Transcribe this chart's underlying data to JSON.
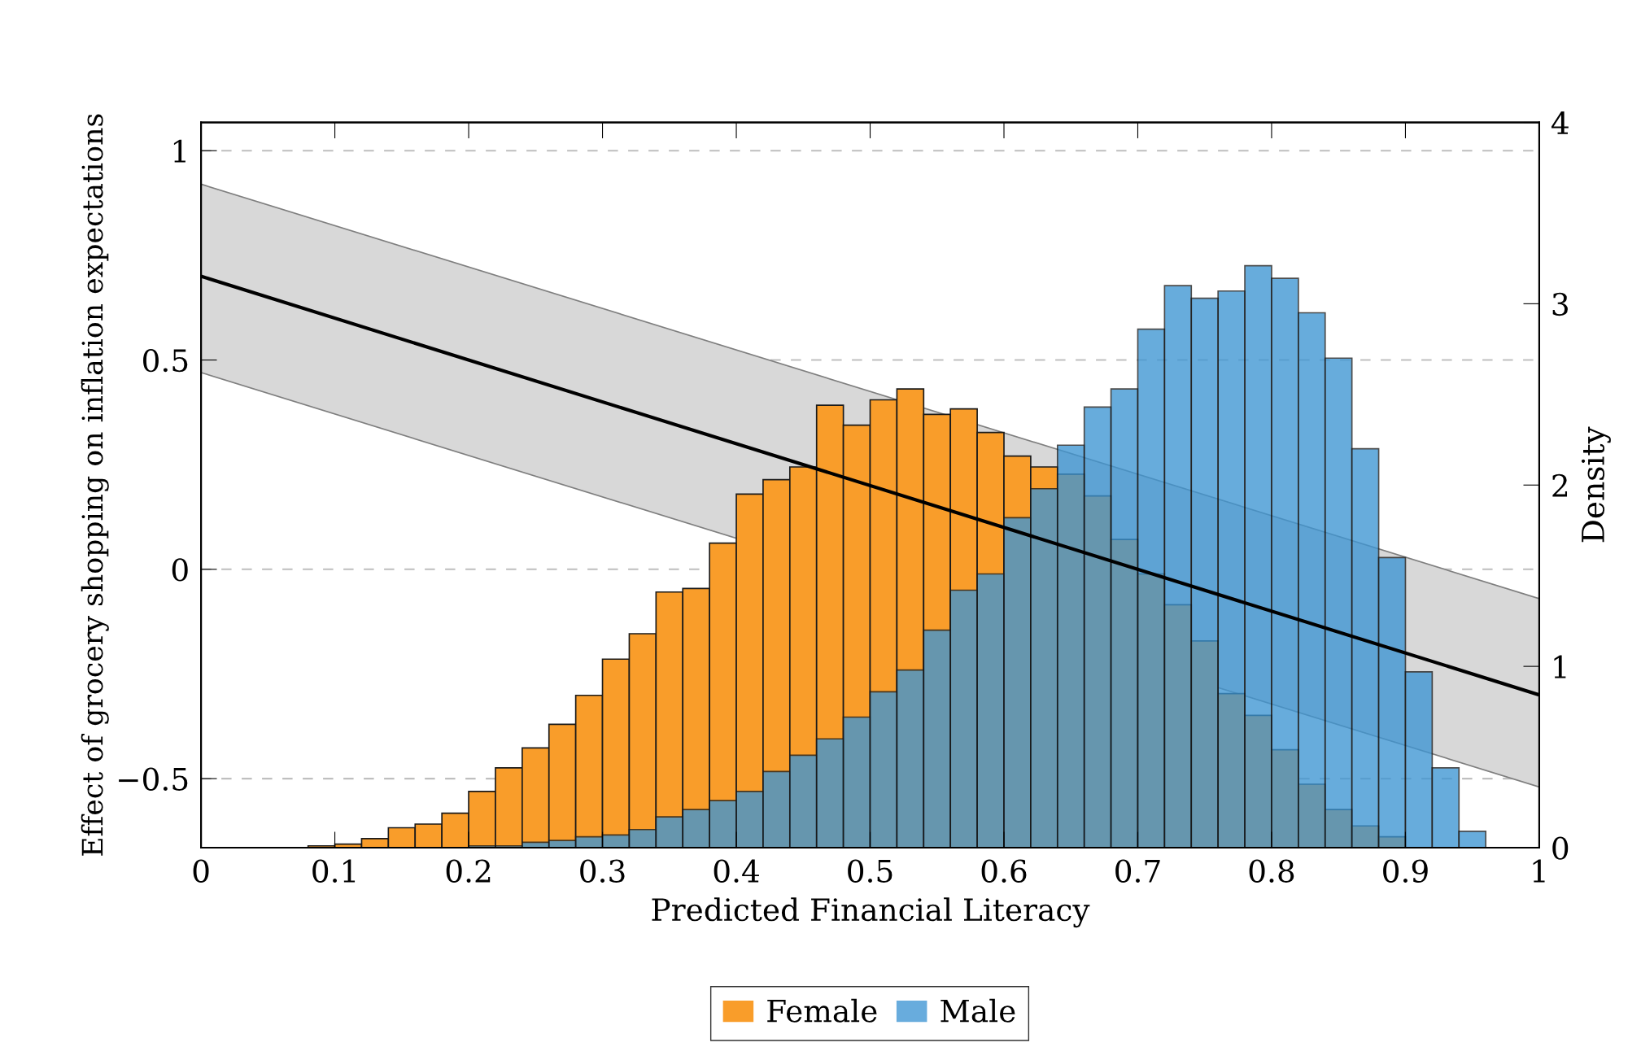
{
  "chart_data": {
    "type": "histogram",
    "xlabel": "Predicted Financial Literacy",
    "ylabel": "Effect of grocery shopping on inflation expectations",
    "y2label": "Density",
    "bins": [
      0.0,
      0.02,
      0.04,
      0.06,
      0.08,
      0.1,
      0.12,
      0.14,
      0.16,
      0.18,
      0.2,
      0.22,
      0.24,
      0.26,
      0.28,
      0.3,
      0.32,
      0.34,
      0.36,
      0.38,
      0.4,
      0.42,
      0.44,
      0.46,
      0.48,
      0.5,
      0.52,
      0.54,
      0.56,
      0.58,
      0.6,
      0.62,
      0.64,
      0.66,
      0.68,
      0.7,
      0.72,
      0.74,
      0.76,
      0.78,
      0.8,
      0.82,
      0.84,
      0.86,
      0.88,
      0.9,
      0.92,
      0.94,
      0.96
    ],
    "series": [
      {
        "name": "Female",
        "color": "#f99d2a",
        "axis": "y2",
        "values": [
          0,
          0,
          0,
          0,
          0.01,
          0.02,
          0.05,
          0.11,
          0.13,
          0.19,
          0.31,
          0.44,
          0.55,
          0.68,
          0.84,
          1.04,
          1.18,
          1.41,
          1.43,
          1.68,
          1.95,
          2.03,
          2.1,
          2.44,
          2.33,
          2.47,
          2.53,
          2.39,
          2.42,
          2.29,
          2.16,
          2.1,
          2.06,
          1.94,
          1.7,
          1.51,
          1.34,
          1.14,
          0.85,
          0.73,
          0.54,
          0.35,
          0.21,
          0.12,
          0.06,
          null,
          null,
          0
        ]
      },
      {
        "name": "Male",
        "color": "#3d95d3",
        "axis": "y2",
        "values": [
          0,
          0,
          0,
          0,
          0,
          0,
          0,
          0,
          0,
          0,
          0.01,
          0.01,
          0.03,
          0.04,
          0.06,
          0.07,
          0.1,
          0.17,
          0.21,
          0.26,
          0.31,
          0.42,
          0.51,
          0.6,
          0.72,
          0.86,
          0.98,
          1.2,
          1.42,
          1.51,
          1.82,
          1.98,
          2.22,
          2.43,
          2.53,
          2.86,
          3.1,
          3.03,
          3.07,
          3.21,
          3.14,
          2.95,
          2.7,
          2.2,
          1.6,
          0.97,
          0.44,
          0.09
        ]
      },
      {
        "type": "line",
        "color": "#000000",
        "axis": "y",
        "x": [
          0,
          1
        ],
        "values": [
          0.7,
          -0.3
        ],
        "lower": [
          0.47,
          -0.52
        ],
        "upper": [
          0.92,
          -0.07
        ]
      }
    ],
    "xlim": [
      0,
      1
    ],
    "xticks": [
      0,
      0.1,
      0.2,
      0.3,
      0.4,
      0.5,
      0.6,
      0.7,
      0.8,
      0.9,
      1
    ],
    "ylim": [
      -0.665,
      1.0675
    ],
    "yticks": [
      {
        "value": -0.5,
        "label": "−0.5"
      },
      0,
      0.5,
      1
    ],
    "y2lim": [
      0,
      4
    ],
    "y2ticks": [
      0,
      1,
      2,
      3,
      4
    ],
    "grid": "y",
    "legend": "bottom"
  }
}
